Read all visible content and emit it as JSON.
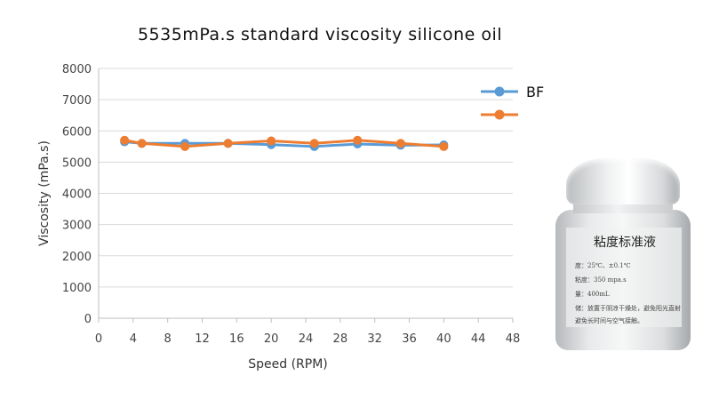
{
  "chart_data": {
    "type": "line",
    "title": "5535mPa.s standard viscosity silicone oil",
    "xlabel": "Speed (RPM)",
    "ylabel": "Viscosity (mPa.s)",
    "xlim": [
      0,
      48
    ],
    "ylim": [
      0,
      8000
    ],
    "xticks": [
      0,
      4,
      8,
      12,
      16,
      20,
      24,
      28,
      32,
      36,
      40,
      44,
      48
    ],
    "yticks": [
      0,
      1000,
      2000,
      3000,
      4000,
      5000,
      6000,
      7000,
      8000
    ],
    "grid": "horizontal",
    "legend_position": "top-right",
    "series": [
      {
        "name": "BF",
        "color": "#5b9bd5",
        "x": [
          3,
          5,
          10,
          15,
          20,
          25,
          30,
          35,
          40
        ],
        "y": [
          5650,
          5600,
          5600,
          5600,
          5560,
          5500,
          5580,
          5540,
          5550
        ]
      },
      {
        "name": "",
        "color": "#ed7d31",
        "x": [
          3,
          5,
          10,
          15,
          20,
          25,
          30,
          35,
          40
        ],
        "y": [
          5700,
          5600,
          5500,
          5600,
          5680,
          5600,
          5700,
          5600,
          5500
        ]
      }
    ]
  },
  "bottle": {
    "label_title": "粘度标准液",
    "lines": [
      "度：25℃、±0.1℃",
      "粘度：350 mpa.s",
      "量：400mL",
      "储：放置于阴凉干燥处，避免阳光直射",
      "避免长时间与空气接触。"
    ]
  }
}
